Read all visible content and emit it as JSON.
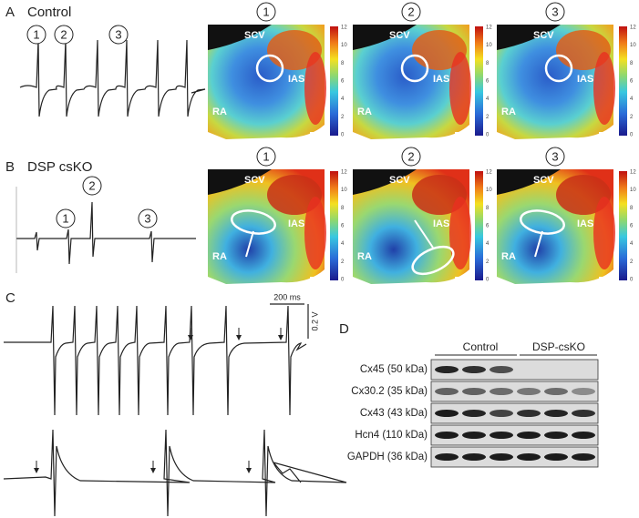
{
  "panel_a": {
    "label": "A",
    "title": "Control",
    "trace_numbers": [
      "1",
      "2",
      "3"
    ],
    "map_numbers": [
      "1",
      "2",
      "3"
    ]
  },
  "panel_b": {
    "label": "B",
    "title": "DSP csKO",
    "trace_numbers": [
      "1",
      "2",
      "3"
    ],
    "map_numbers": [
      "1",
      "2",
      "3"
    ]
  },
  "map_labels": {
    "scv": "SCV",
    "ias": "IAS",
    "ra": "RA"
  },
  "colorbar_ticks": [
    "12",
    "10",
    "8",
    "6",
    "4",
    "2",
    "0"
  ],
  "panel_c": {
    "label": "C",
    "time_scale": "200 ms",
    "voltage_scale": "0.2 V"
  },
  "panel_d": {
    "label": "D",
    "groups": [
      "Control",
      "DSP-csKO"
    ],
    "rows": [
      "Cx45 (50 kDa)",
      "Cx30.2 (35 kDa)",
      "Cx43 (43 kDa)",
      "Hcn4 (110 kDa)",
      "GAPDH (36 kDa)"
    ]
  }
}
